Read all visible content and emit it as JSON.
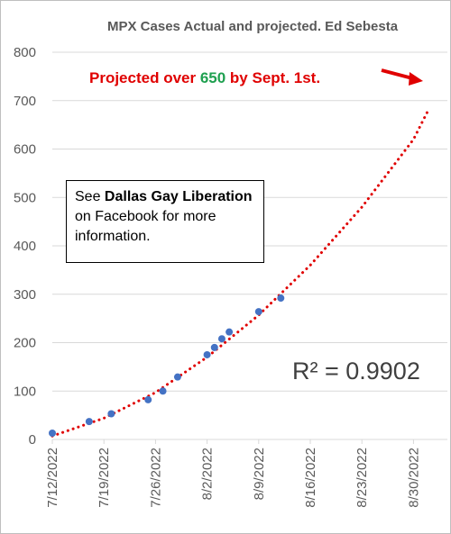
{
  "title": "MPX Cases Actual and projected. Ed Sebesta",
  "projection_text": {
    "before": "Projected over ",
    "number": "650",
    "after": " by Sept. 1st."
  },
  "infobox": {
    "before": "See ",
    "bold": "Dallas Gay Liberation",
    "after": " on Facebook for more information."
  },
  "r_squared": "R² = 0.9902",
  "colors": {
    "points": "#4472c4",
    "trendline": "#e00000",
    "gridlines": "#d9d9d9",
    "projection_text": "#e00000",
    "projection_number": "#1fa050"
  },
  "arrow_icon": "red-arrow-pointing-right",
  "chart_data": {
    "type": "scatter",
    "title": "MPX Cases Actual and projected. Ed Sebesta",
    "xlabel": "",
    "ylabel": "",
    "ylim": [
      0,
      800
    ],
    "y_ticks": [
      0,
      100,
      200,
      300,
      400,
      500,
      600,
      700,
      800
    ],
    "xlim": [
      "2022-07-12",
      "2022-09-01"
    ],
    "x_ticks": [
      "7/12/2022",
      "7/19/2022",
      "7/26/2022",
      "8/2/2022",
      "8/9/2022",
      "8/16/2022",
      "8/23/2022",
      "8/30/2022"
    ],
    "grid": "horizontal",
    "series": [
      {
        "x": [
          "2022-07-12",
          "2022-07-17",
          "2022-07-20",
          "2022-07-25",
          "2022-07-27",
          "2022-07-29",
          "2022-08-02",
          "2022-08-03",
          "2022-08-04",
          "2022-08-05",
          "2022-08-09",
          "2022-08-12"
        ],
        "y": [
          13,
          37,
          53,
          82,
          100,
          129,
          175,
          190,
          208,
          222,
          264,
          292
        ]
      }
    ],
    "trendline": {
      "type": "polynomial",
      "style": "dotted",
      "points": [
        {
          "x": "2022-07-12",
          "y": 7
        },
        {
          "x": "2022-07-19",
          "y": 44
        },
        {
          "x": "2022-07-26",
          "y": 97
        },
        {
          "x": "2022-08-02",
          "y": 170
        },
        {
          "x": "2022-08-09",
          "y": 257
        },
        {
          "x": "2022-08-16",
          "y": 360
        },
        {
          "x": "2022-08-23",
          "y": 480
        },
        {
          "x": "2022-08-30",
          "y": 620
        },
        {
          "x": "2022-09-01",
          "y": 680
        }
      ],
      "r_squared": 0.9902
    }
  }
}
